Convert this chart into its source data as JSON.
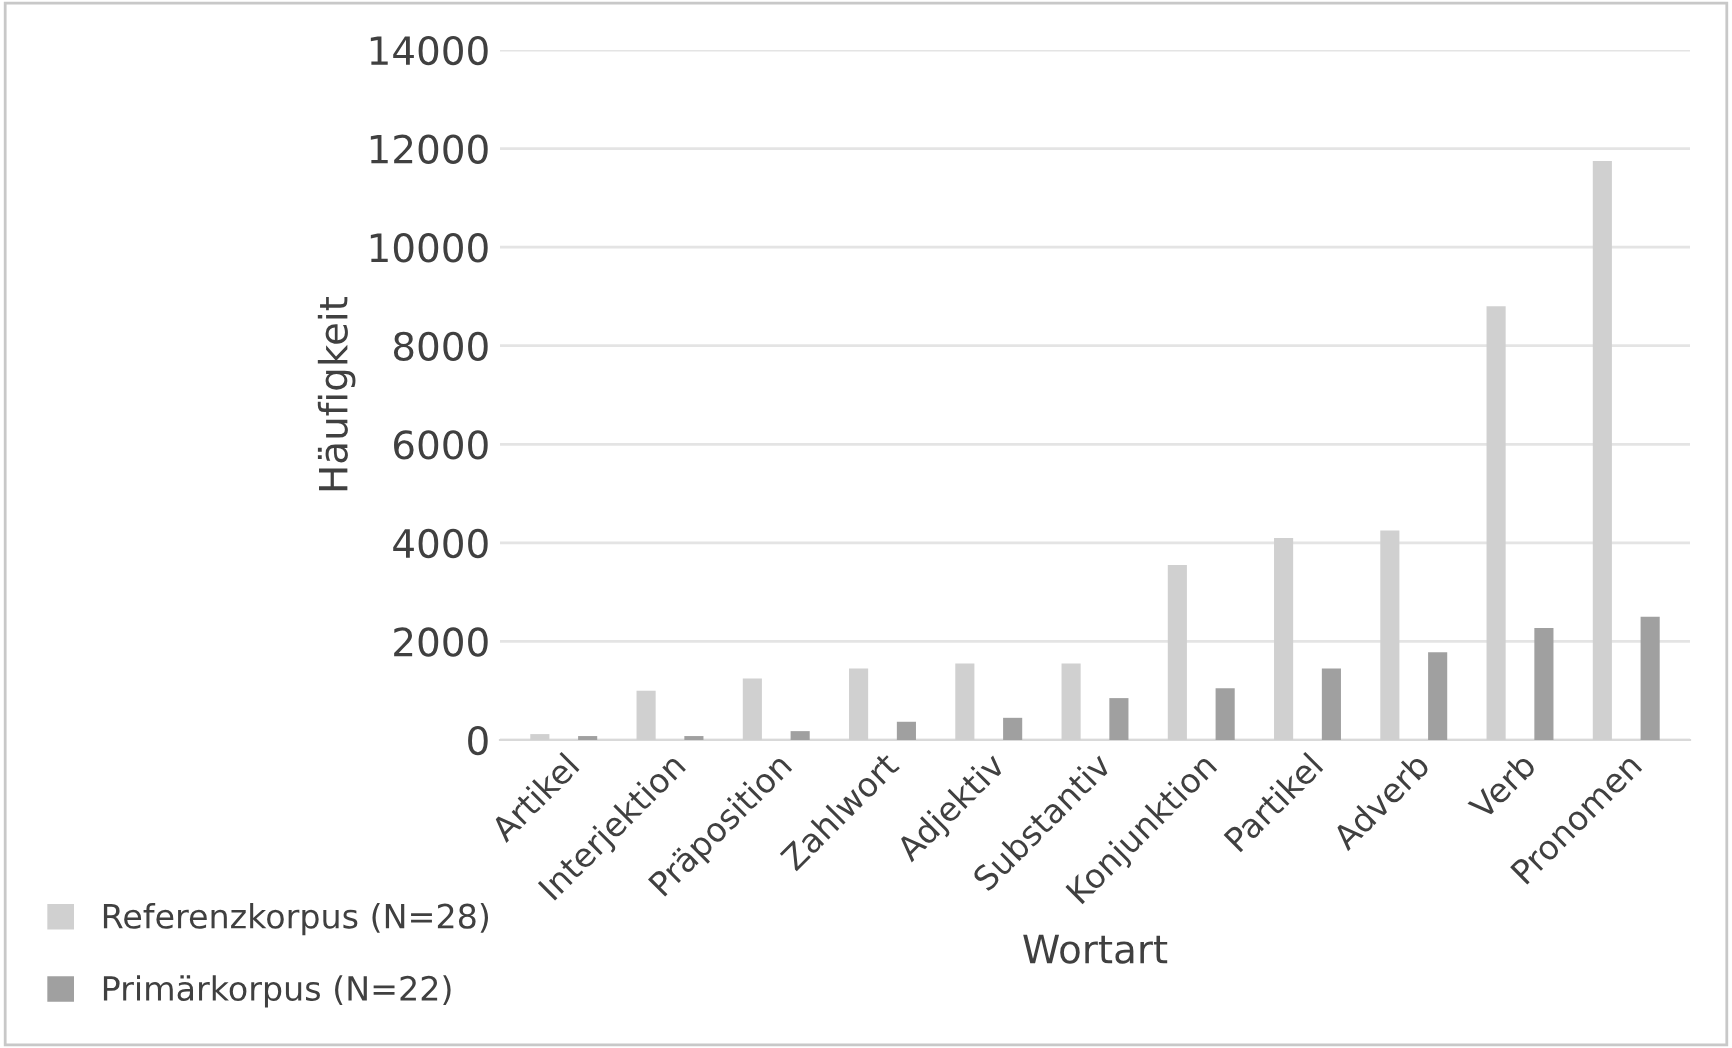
{
  "chart_data": {
    "type": "bar",
    "xlabel": "Wortart",
    "ylabel": "Häufigkeit",
    "categories": [
      "Artikel",
      "Interjektion",
      "Präposition",
      "Zahlwort",
      "Adjektiv",
      "Substantiv",
      "Konjunktion",
      "Partikel",
      "Adverb",
      "Verb",
      "Pronomen"
    ],
    "series": [
      {
        "name": "Referenzkorpus (N=28)",
        "color": "#d0d0d0",
        "values": [
          120,
          1000,
          1250,
          1450,
          1550,
          1550,
          3550,
          4100,
          4250,
          8800,
          11750
        ]
      },
      {
        "name": "Primärkorpus (N=22)",
        "color": "#a0a0a0",
        "values": [
          80,
          80,
          180,
          370,
          450,
          850,
          1050,
          1450,
          1780,
          2270,
          2500
        ]
      }
    ],
    "ylim": [
      0,
      14000
    ],
    "yticks": [
      0,
      2000,
      4000,
      6000,
      8000,
      10000,
      12000,
      14000
    ],
    "grid": "y",
    "legend": "bottom left"
  }
}
